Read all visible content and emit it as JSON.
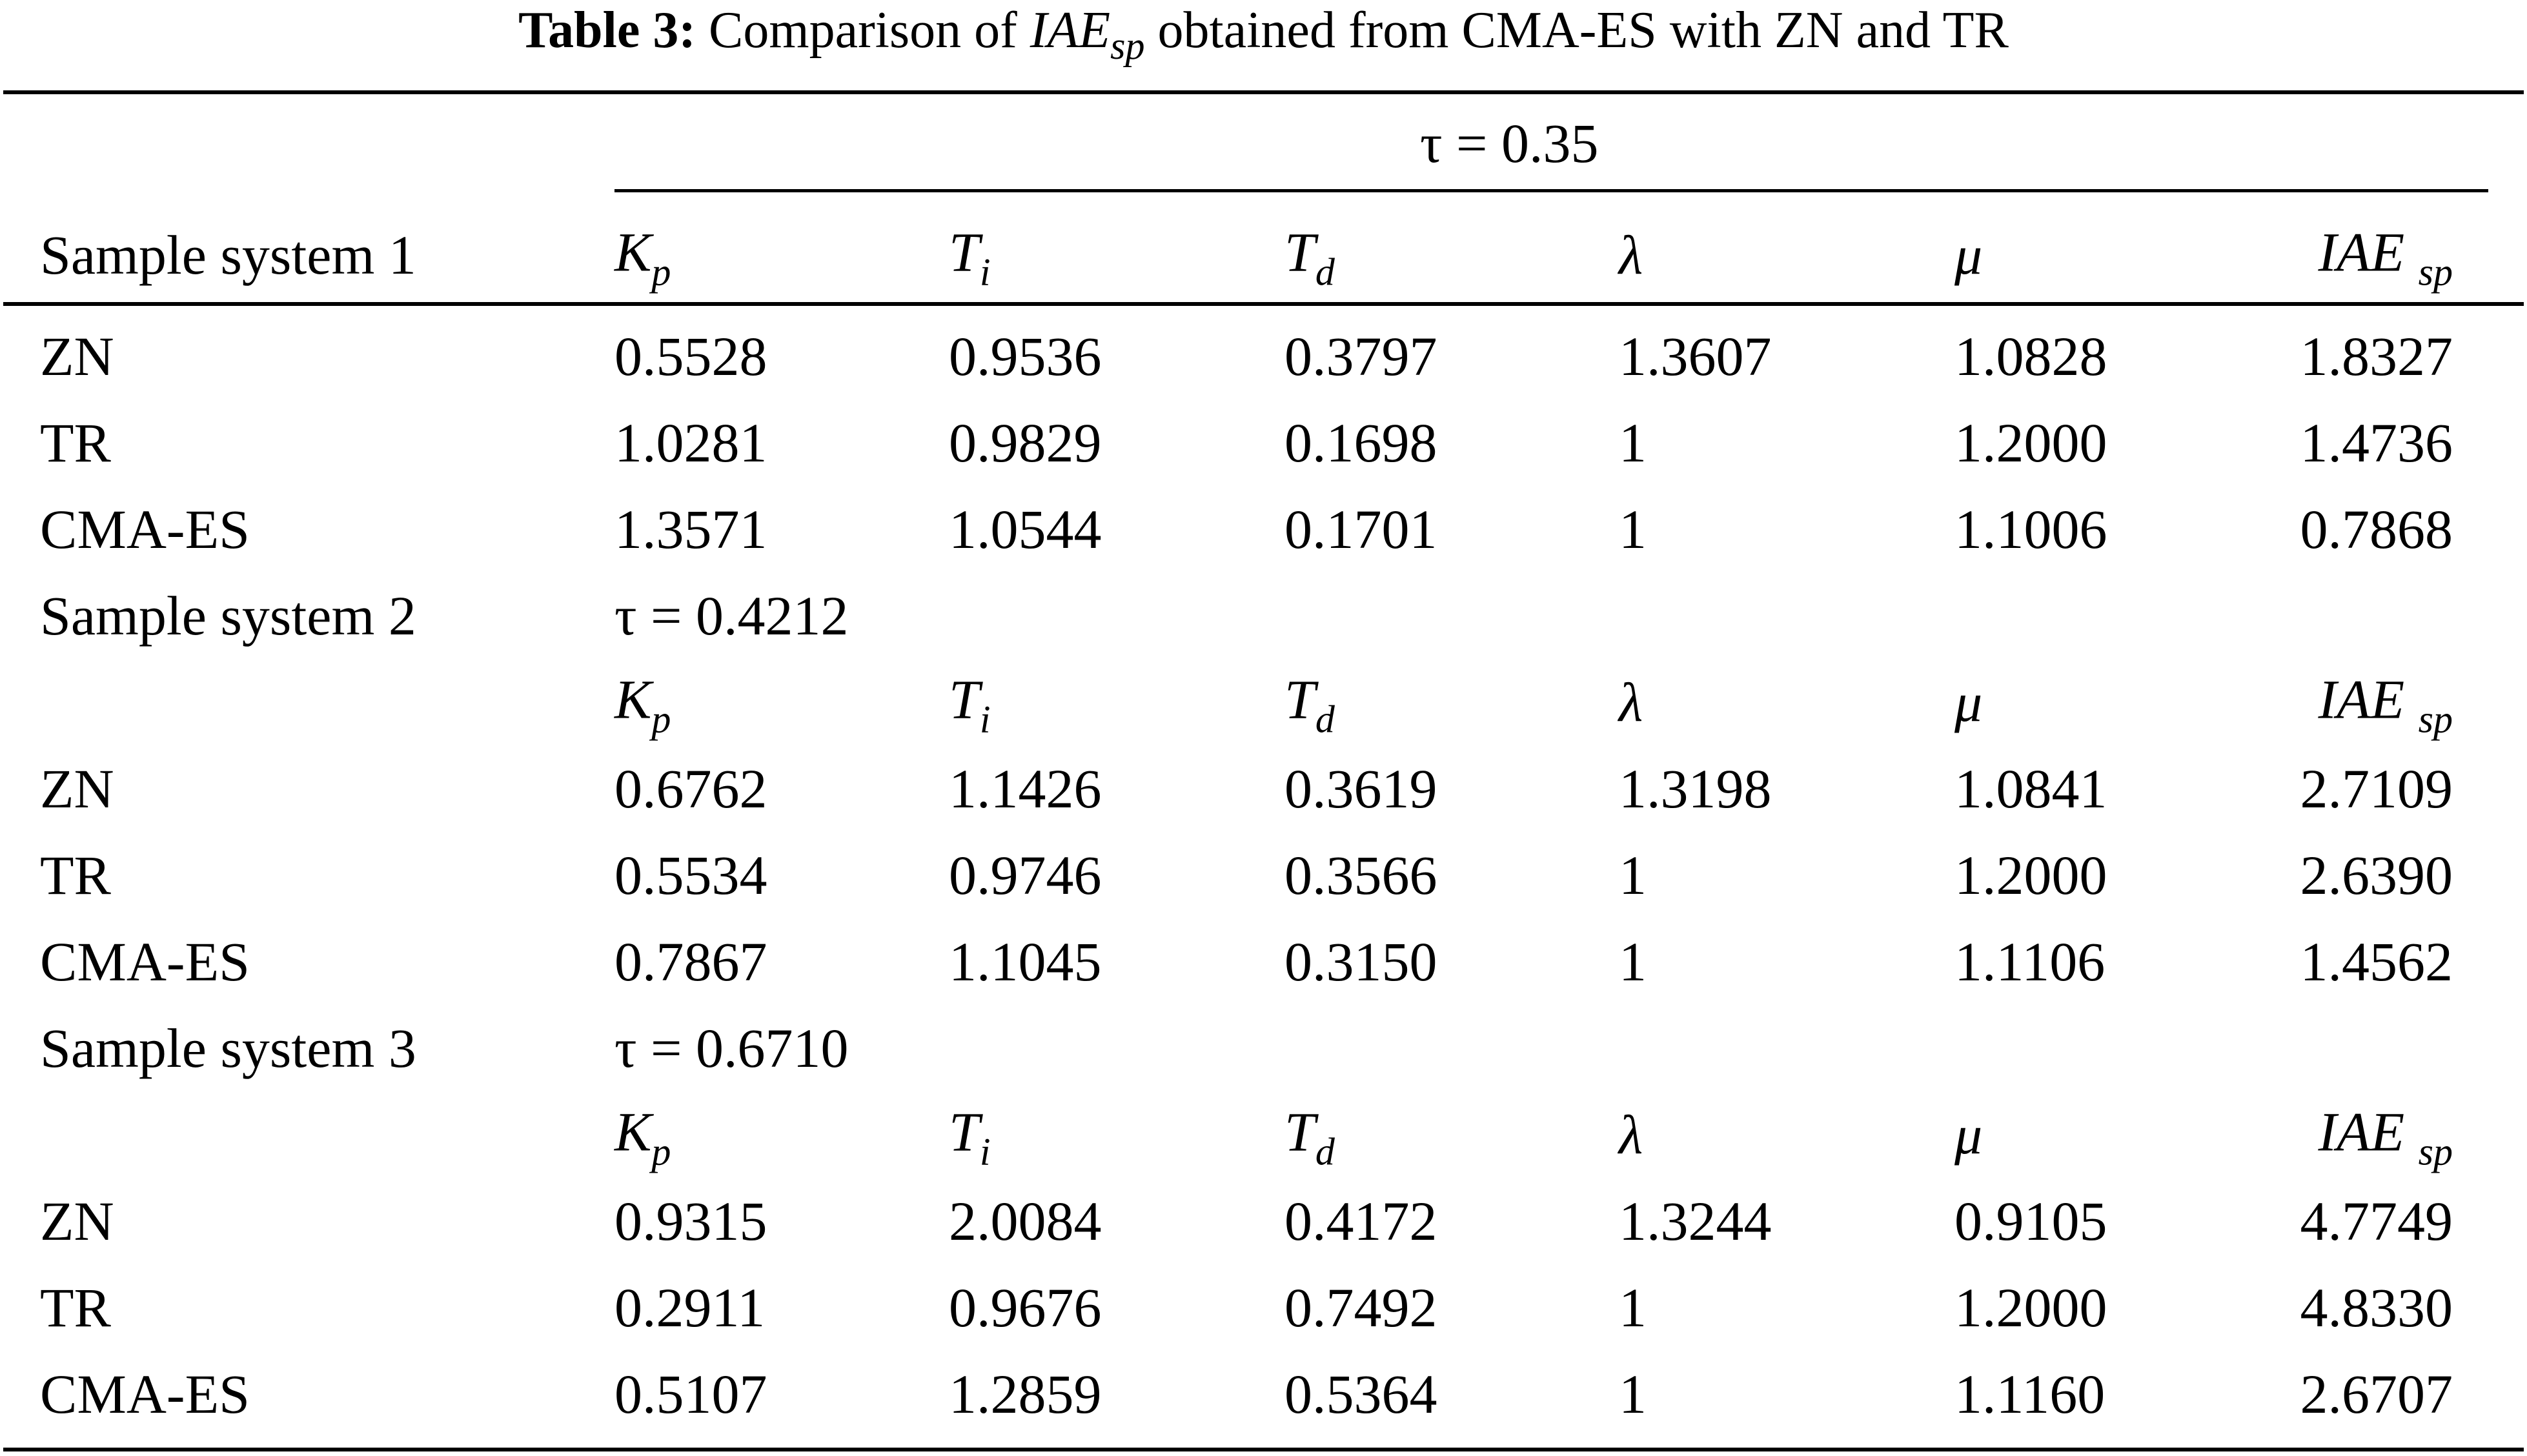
{
  "caption": {
    "label": "Table 3:",
    "text_before": "Comparison of",
    "metric": "IAE",
    "metric_sub": "sp",
    "text_after": "obtained from CMA-ES with ZN and TR"
  },
  "header": {
    "tau_label": "τ = 0.35",
    "row_label": "Sample system 1",
    "cols": [
      {
        "main": "K",
        "sub": "p"
      },
      {
        "main": "T",
        "sub": "i"
      },
      {
        "main": "T",
        "sub": "d"
      },
      {
        "main": "λ",
        "sub": ""
      },
      {
        "main": "μ",
        "sub": ""
      },
      {
        "main": "IAE ",
        "sub": "sp"
      }
    ]
  },
  "systems": [
    {
      "rows": [
        {
          "method": "ZN",
          "values": [
            "0.5528",
            "0.9536",
            "0.3797",
            "1.3607",
            "1.0828",
            "1.8327"
          ]
        },
        {
          "method": "TR",
          "values": [
            "1.0281",
            "0.9829",
            "0.1698",
            "1",
            "1.2000",
            "1.4736"
          ]
        },
        {
          "method": "CMA-ES",
          "values": [
            "1.3571",
            "1.0544",
            "0.1701",
            "1",
            "1.1006",
            "0.7868"
          ]
        }
      ]
    },
    {
      "name": "Sample system 2",
      "tau": "τ = 0.4212",
      "rows": [
        {
          "method": "ZN",
          "values": [
            "0.6762",
            "1.1426",
            "0.3619",
            "1.3198",
            "1.0841",
            "2.7109"
          ]
        },
        {
          "method": "TR",
          "values": [
            "0.5534",
            "0.9746",
            "0.3566",
            "1",
            "1.2000",
            "2.6390"
          ]
        },
        {
          "method": "CMA-ES",
          "values": [
            "0.7867",
            "1.1045",
            "0.3150",
            "1",
            "1.1106",
            "1.4562"
          ]
        }
      ]
    },
    {
      "name": "Sample system 3",
      "tau": "τ = 0.6710",
      "rows": [
        {
          "method": "ZN",
          "values": [
            "0.9315",
            "2.0084",
            "0.4172",
            "1.3244",
            "0.9105",
            "4.7749"
          ]
        },
        {
          "method": "TR",
          "values": [
            "0.2911",
            "0.9676",
            "0.7492",
            "1",
            "1.2000",
            "4.8330"
          ]
        },
        {
          "method": "CMA-ES",
          "values": [
            "0.5107",
            "1.2859",
            "0.5364",
            "1",
            "1.1160",
            "2.6707"
          ]
        }
      ]
    }
  ]
}
